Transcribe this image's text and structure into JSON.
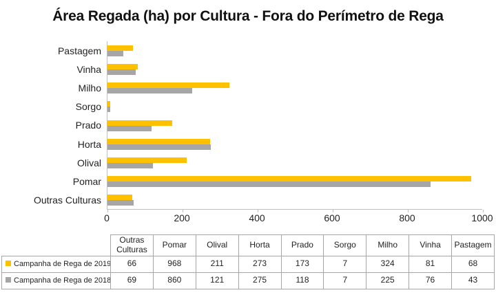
{
  "title": "Área Regada (ha) por Cultura - Fora do Perímetro de Rega",
  "colors": {
    "series_2019": "#FFC000",
    "series_2018": "#A6A6A6",
    "axis_line": "#BFBFBF",
    "table_border": "#A6A6A6",
    "text": "#1F1F1F"
  },
  "chart_data": {
    "type": "bar",
    "orientation": "horizontal",
    "title": "Área Regada (ha) por Cultura - Fora do Perímetro de Rega",
    "categories": [
      "Pastagem",
      "Vinha",
      "Milho",
      "Sorgo",
      "Prado",
      "Horta",
      "Olival",
      "Pomar",
      "Outras Culturas"
    ],
    "series": [
      {
        "name": "Campanha de Rega de 2019",
        "color": "#FFC000",
        "values": [
          68,
          81,
          324,
          7,
          173,
          273,
          211,
          968,
          66
        ]
      },
      {
        "name": "Campanha de Rega de 2018",
        "color": "#A6A6A6",
        "values": [
          43,
          76,
          225,
          7,
          118,
          275,
          121,
          860,
          69
        ]
      }
    ],
    "xlabel": "",
    "ylabel": "",
    "xlim": [
      0,
      1000
    ],
    "xticks": [
      0,
      200,
      400,
      600,
      800,
      1000
    ],
    "grid": false,
    "legend_position": "bottom-data-table"
  },
  "table": {
    "columns": [
      "Outras Culturas",
      "Pomar",
      "Olival",
      "Horta",
      "Prado",
      "Sorgo",
      "Milho",
      "Vinha",
      "Pastagem"
    ],
    "rows": [
      {
        "label": "Campanha de Rega de 2019",
        "swatch": "#FFC000",
        "values": [
          66,
          968,
          211,
          273,
          173,
          7,
          324,
          81,
          68
        ]
      },
      {
        "label": "Campanha de Rega de 2018",
        "swatch": "#A6A6A6",
        "values": [
          69,
          860,
          121,
          275,
          118,
          7,
          225,
          76,
          43
        ]
      }
    ]
  }
}
